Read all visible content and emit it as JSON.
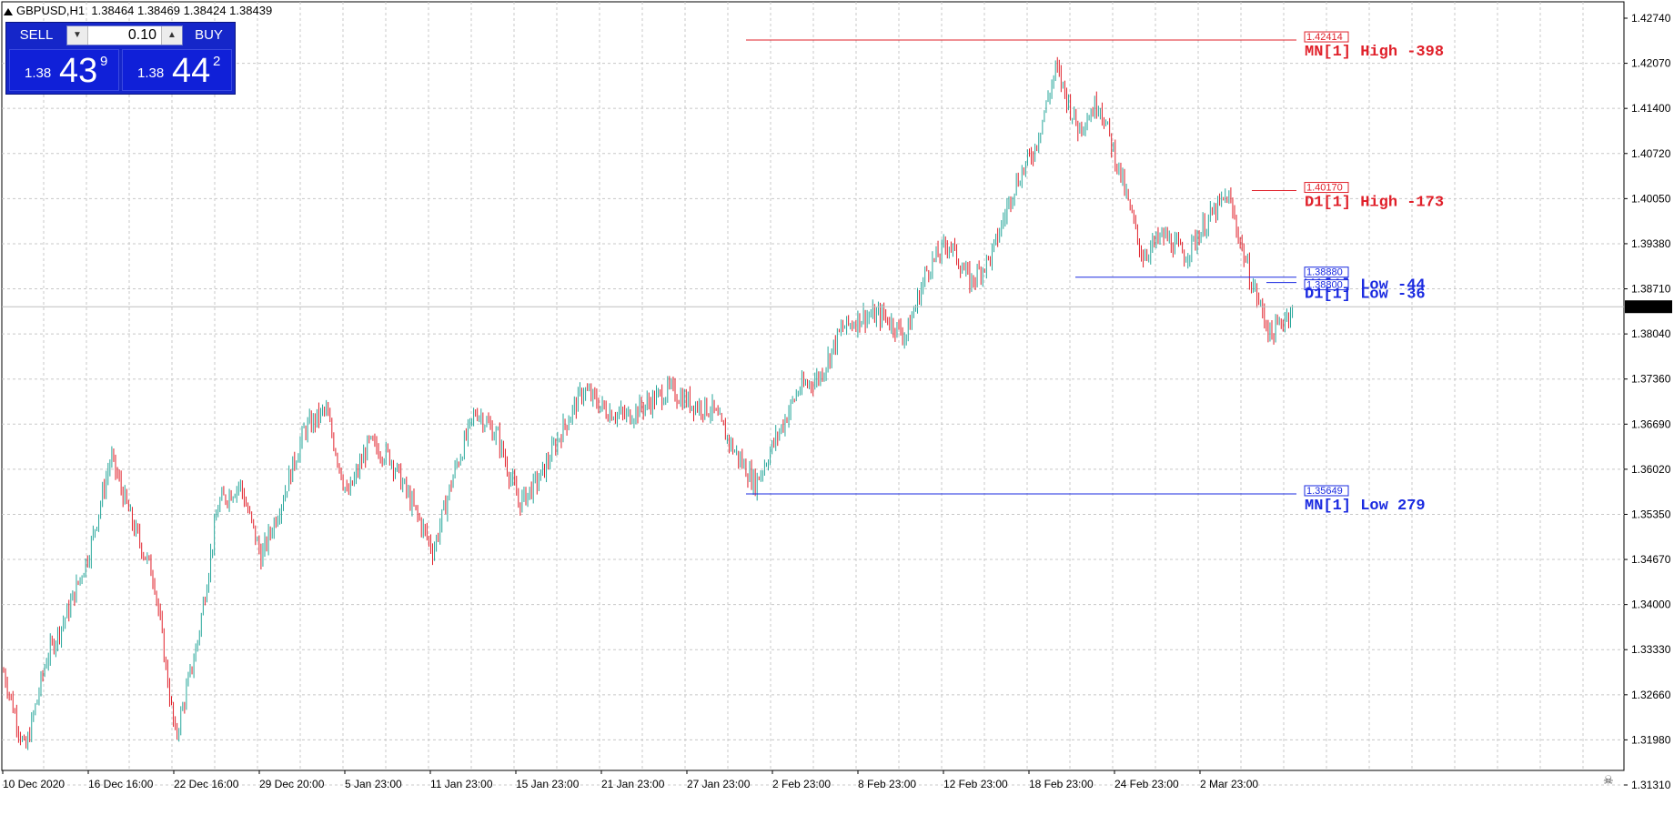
{
  "header": {
    "symbol": "GBPUSD,H1",
    "ohlc": "1.38464 1.38469 1.38424 1.38439"
  },
  "trade_panel": {
    "sell_label": "SELL",
    "buy_label": "BUY",
    "lot": "0.10",
    "sell_price": {
      "prefix": "1.38",
      "big": "43",
      "sup": "9"
    },
    "buy_price": {
      "prefix": "1.38",
      "big": "44",
      "sup": "2"
    },
    "colors": {
      "panel": "#1526c9",
      "price_box": "#1020d8"
    }
  },
  "chart": {
    "bull_color": "#26a69a",
    "bear_color": "#e0202a",
    "grid_color": "#c8c8c8",
    "grid_style": "dashed",
    "current_price": "1.38439",
    "price_ticks": [
      "1.42740",
      "1.42070",
      "1.41400",
      "1.40720",
      "1.40050",
      "1.39380",
      "1.38710",
      "1.38040",
      "1.37360",
      "1.36690",
      "1.36020",
      "1.35350",
      "1.34670",
      "1.34000",
      "1.33330",
      "1.32660",
      "1.31980",
      "1.31310"
    ],
    "time_ticks": [
      "10 Dec 2020",
      "16 Dec 16:00",
      "22 Dec 16:00",
      "29 Dec 20:00",
      "5 Jan 23:00",
      "11 Jan 23:00",
      "15 Jan 23:00",
      "21 Jan 23:00",
      "27 Jan 23:00",
      "2 Feb 23:00",
      "8 Feb 23:00",
      "12 Feb 23:00",
      "18 Feb 23:00",
      "24 Feb 23:00",
      "2 Mar 23:00"
    ],
    "levels": [
      {
        "tag": "1.42414",
        "text": "MN[1] High  -398",
        "color": "#e0202a"
      },
      {
        "tag": "1.40170",
        "text": "D1[1] High  -173",
        "color": "#e0202a"
      },
      {
        "tag": "1.38880",
        "text": "W1[1] Low  -44",
        "color": "#1a2ae0"
      },
      {
        "tag": "1.38800",
        "text": "D1[1] Low  -36",
        "color": "#1a2ae0"
      },
      {
        "tag": "1.35649",
        "text": "MN[1] Low  279",
        "color": "#1a2ae0"
      }
    ]
  },
  "chart_data": {
    "type": "candlestick",
    "series_trend": [
      [
        "10 Dec 2020",
        1.33
      ],
      [
        "12 Dec",
        1.318
      ],
      [
        "14 Dec",
        1.332
      ],
      [
        "15 Dec",
        1.339
      ],
      [
        "16 Dec 16:00",
        1.348
      ],
      [
        "17 Dec",
        1.362
      ],
      [
        "18 Dec",
        1.352
      ],
      [
        "19 Dec",
        1.344
      ],
      [
        "21 Dec",
        1.32
      ],
      [
        "22 Dec 16:00",
        1.334
      ],
      [
        "23 Dec",
        1.355
      ],
      [
        "24 Dec",
        1.358
      ],
      [
        "25 Dec",
        1.347
      ],
      [
        "28 Dec",
        1.356
      ],
      [
        "29 Dec 20:00",
        1.366
      ],
      [
        "30 Dec",
        1.369
      ],
      [
        "4 Jan",
        1.356
      ],
      [
        "5 Jan 23:00",
        1.364
      ],
      [
        "6 Jan",
        1.362
      ],
      [
        "8 Jan",
        1.355
      ],
      [
        "11 Jan 23:00",
        1.348
      ],
      [
        "12 Jan",
        1.36
      ],
      [
        "13 Jan",
        1.369
      ],
      [
        "14 Jan",
        1.365
      ],
      [
        "15 Jan 23:00",
        1.355
      ],
      [
        "18 Jan",
        1.359
      ],
      [
        "20 Jan",
        1.366
      ],
      [
        "21 Jan 23:00",
        1.372
      ],
      [
        "22 Jan",
        1.369
      ],
      [
        "25 Jan",
        1.368
      ],
      [
        "26 Jan",
        1.37
      ],
      [
        "27 Jan 23:00",
        1.372
      ],
      [
        "28 Jan",
        1.37
      ],
      [
        "29 Jan",
        1.369
      ],
      [
        "1 Feb",
        1.363
      ],
      [
        "2 Feb 23:00",
        1.358
      ],
      [
        "3 Feb",
        1.365
      ],
      [
        "4 Feb",
        1.372
      ],
      [
        "5 Feb",
        1.374
      ],
      [
        "8 Feb 23:00",
        1.381
      ],
      [
        "9 Feb",
        1.383
      ],
      [
        "10 Feb",
        1.383
      ],
      [
        "11 Feb",
        1.38
      ],
      [
        "12 Feb 23:00",
        1.39
      ],
      [
        "15 Feb",
        1.394
      ],
      [
        "16 Feb",
        1.388
      ],
      [
        "17 Feb",
        1.392
      ],
      [
        "18 Feb 23:00",
        1.402
      ],
      [
        "19 Feb",
        1.408
      ],
      [
        "22 Feb",
        1.42
      ],
      [
        "23 Feb",
        1.411
      ],
      [
        "24 Feb 23:00",
        1.415
      ],
      [
        "25 Feb",
        1.404
      ],
      [
        "26 Feb",
        1.392
      ],
      [
        "1 Mar",
        1.395
      ],
      [
        "2 Mar 23:00",
        1.392
      ],
      [
        "3 Mar",
        1.397
      ],
      [
        "4 Mar",
        1.401
      ],
      [
        "5 Mar",
        1.389
      ],
      [
        "6 Mar",
        1.38
      ],
      [
        "7 Mar",
        1.38439
      ]
    ],
    "ylim": [
      1.3131,
      1.4274
    ]
  }
}
